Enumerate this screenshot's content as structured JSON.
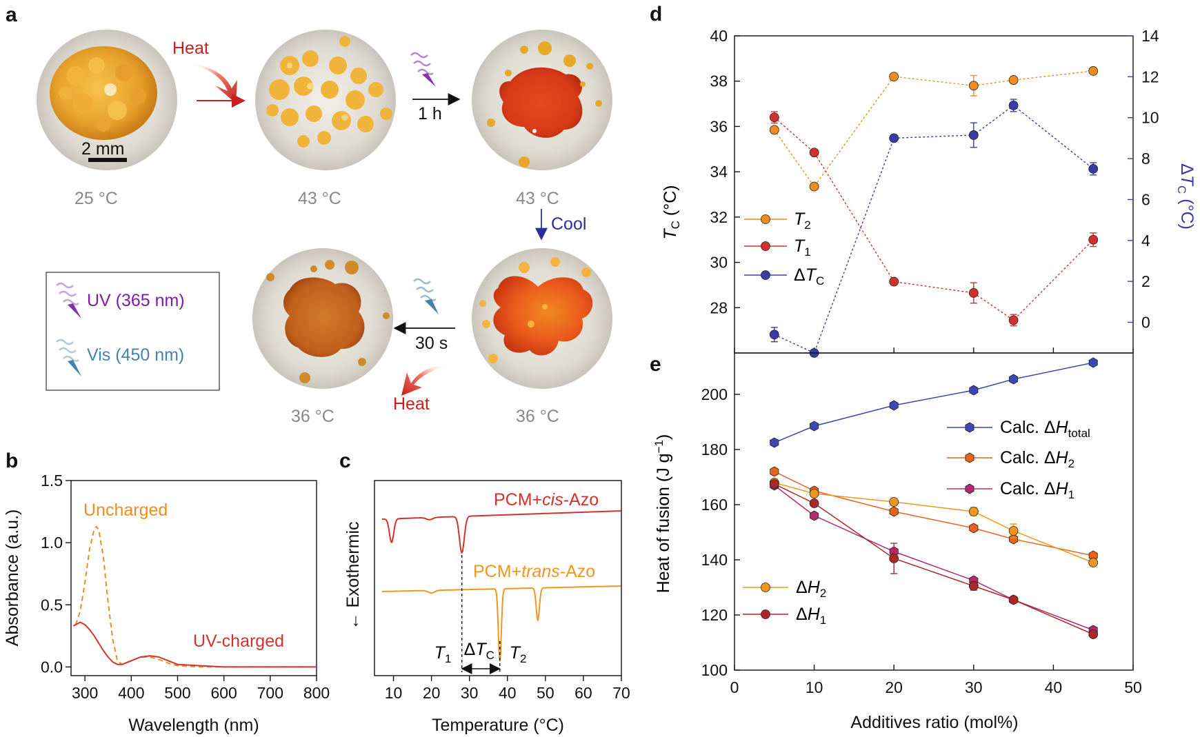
{
  "colors": {
    "t2": "#f08c1e",
    "t1": "#d2322d",
    "dtc": "#3b3ba8",
    "h_total": "#3c46b4",
    "calc_h2": "#e6641e",
    "calc_h1": "#b4286e",
    "exp_h2": "#f0961e",
    "exp_h1": "#aa2828",
    "uv": "#7d1ea0",
    "vis": "#4682aa",
    "heat": "#c81e1e",
    "cool": "#2d2d96",
    "uncharged": "#f08c1e",
    "uv_charged": "#d2322d",
    "dsc_cis": "#d2322d",
    "dsc_trans": "#f0961e"
  },
  "panel_a": {
    "label": "a",
    "scale_bar": "2 mm",
    "temps": [
      "25 °C",
      "43 °C",
      "43 °C",
      "36 °C",
      "36 °C"
    ],
    "arrows": {
      "heat_top": "Heat",
      "time_1h": "1 h",
      "cool": "Cool",
      "time_30s": "30 s",
      "heat_bottom": "Heat"
    },
    "legend": {
      "uv": "UV (365 nm)",
      "vis": "Vis (450 nm)"
    }
  },
  "chart_data": [
    {
      "panel": "b",
      "type": "line",
      "xlabel": "Wavelength (nm)",
      "ylabel": "Absorbance (a.u.)",
      "xlim": [
        270,
        800
      ],
      "ylim": [
        -0.07,
        1.5
      ],
      "xticks": [
        300,
        400,
        500,
        600,
        700,
        800
      ],
      "yticks": [
        0.0,
        0.5,
        1.0,
        1.5
      ],
      "ytick_labels": [
        "0.0",
        "0.5",
        "1.0",
        "1.5"
      ],
      "annotations": [
        "Uncharged",
        "UV-charged"
      ],
      "series": [
        {
          "name": "Uncharged",
          "style": "dashed",
          "x": [
            280,
            290,
            300,
            310,
            320,
            325,
            330,
            340,
            350,
            360,
            370,
            380,
            400,
            420,
            440,
            460,
            480,
            500,
            550,
            600,
            700,
            800
          ],
          "y": [
            0.34,
            0.45,
            0.68,
            0.95,
            1.11,
            1.13,
            1.1,
            0.88,
            0.52,
            0.22,
            0.05,
            0.02,
            0.05,
            0.08,
            0.08,
            0.06,
            0.03,
            0.01,
            0.0,
            0.0,
            0.0,
            0.0
          ]
        },
        {
          "name": "UV-charged",
          "style": "solid",
          "x": [
            275,
            290,
            300,
            310,
            320,
            330,
            340,
            350,
            360,
            370,
            380,
            400,
            420,
            440,
            460,
            480,
            500,
            550,
            600,
            700,
            800
          ],
          "y": [
            0.33,
            0.36,
            0.34,
            0.3,
            0.25,
            0.19,
            0.13,
            0.08,
            0.04,
            0.02,
            0.02,
            0.05,
            0.08,
            0.09,
            0.08,
            0.05,
            0.02,
            0.01,
            0.0,
            0.0,
            0.0
          ]
        }
      ]
    },
    {
      "panel": "c",
      "type": "line",
      "xlabel": "Temperature (°C)",
      "ylabel": "← Exothermic",
      "xlim": [
        5,
        70
      ],
      "xticks": [
        10,
        20,
        30,
        40,
        50,
        60,
        70
      ],
      "annotations": {
        "cis": "PCM+cis-Azo",
        "trans": "PCM+trans-Azo",
        "t1": "T1",
        "dtc": "ΔTC",
        "t2": "T2",
        "t1_temp": 28,
        "t2_temp": 38
      },
      "series": [
        {
          "name": "PCM+cis-Azo",
          "baseline": 0.0,
          "peaks": [
            {
              "center": 9.5,
              "depth": 0.55,
              "width": 0.8
            },
            {
              "center": 19.5,
              "depth": 0.05,
              "width": 1.2
            },
            {
              "center": 28,
              "depth": 0.85,
              "width": 0.9
            }
          ]
        },
        {
          "name": "PCM+trans-Azo",
          "baseline": 0.0,
          "peaks": [
            {
              "center": 20,
              "depth": 0.06,
              "width": 1.2
            },
            {
              "center": 38,
              "depth": 1.7,
              "width": 0.55
            },
            {
              "center": 48,
              "depth": 0.75,
              "width": 0.6
            }
          ]
        }
      ]
    },
    {
      "panel": "d",
      "type": "line",
      "xlabel": "",
      "ylabel": "TC (°C)",
      "y2label": "ΔTC (°C)",
      "xlim": [
        0,
        50
      ],
      "ylim": [
        26,
        40
      ],
      "y2lim": [
        -1.5,
        14
      ],
      "yticks": [
        28,
        30,
        32,
        34,
        36,
        38,
        40
      ],
      "y2ticks": [
        0,
        2,
        4,
        6,
        8,
        10,
        12,
        14
      ],
      "legend_position": "left-middle",
      "series": [
        {
          "name": "T2",
          "axis": "left",
          "x": [
            5,
            10,
            20,
            30,
            35,
            45
          ],
          "y": [
            35.85,
            33.35,
            38.2,
            37.8,
            38.05,
            38.45
          ],
          "err": [
            0.0,
            0.0,
            0.0,
            0.45,
            0.0,
            0.0
          ]
        },
        {
          "name": "T1",
          "axis": "left",
          "x": [
            5,
            10,
            20,
            30,
            35,
            45
          ],
          "y": [
            36.4,
            34.85,
            29.15,
            28.65,
            27.45,
            31.0
          ],
          "err": [
            0.25,
            0.0,
            0.0,
            0.45,
            0.25,
            0.3
          ]
        },
        {
          "name": "ΔTC",
          "axis": "right",
          "x": [
            5,
            10,
            20,
            30,
            35,
            45
          ],
          "y": [
            -0.6,
            -1.5,
            9.0,
            9.15,
            10.6,
            7.5
          ],
          "err": [
            0.35,
            0.0,
            0.0,
            0.6,
            0.3,
            0.3
          ]
        }
      ]
    },
    {
      "panel": "e",
      "type": "line",
      "xlabel": "Additives ratio (mol%)",
      "ylabel": "Heat of fusion (J g−1)",
      "xlim": [
        0,
        50
      ],
      "ylim": [
        100,
        215
      ],
      "xticks": [
        0,
        10,
        20,
        30,
        40,
        50
      ],
      "yticks": [
        100,
        120,
        140,
        160,
        180,
        200
      ],
      "legend_position": [
        "top-right",
        "bottom-left"
      ],
      "series": [
        {
          "name": "Calc. ΔHtotal",
          "x": [
            5,
            10,
            20,
            30,
            35,
            45
          ],
          "y": [
            182.5,
            188.5,
            196,
            201.5,
            205.5,
            211.5
          ],
          "err": [
            0,
            0,
            0,
            0,
            0,
            0
          ]
        },
        {
          "name": "Calc. ΔH2",
          "x": [
            5,
            10,
            20,
            30,
            35,
            45
          ],
          "y": [
            172,
            165,
            157.5,
            151.5,
            147.5,
            141.5
          ],
          "err": [
            0,
            0,
            0,
            0,
            0,
            0
          ]
        },
        {
          "name": "Calc. ΔH1",
          "x": [
            5,
            10,
            20,
            30,
            35,
            45
          ],
          "y": [
            167,
            156,
            143,
            132.5,
            125.5,
            114.5
          ],
          "err": [
            0,
            0,
            0,
            0,
            0,
            0
          ]
        },
        {
          "name": "ΔH2",
          "x": [
            5,
            10,
            20,
            30,
            35,
            45
          ],
          "y": [
            168,
            164,
            161,
            157.5,
            150.5,
            139
          ],
          "err": [
            0,
            0,
            0,
            1.5,
            2.5,
            0
          ]
        },
        {
          "name": "ΔH1",
          "x": [
            5,
            10,
            20,
            30,
            35,
            45
          ],
          "y": [
            167.5,
            160.5,
            140.5,
            130.5,
            125.5,
            113
          ],
          "err": [
            0,
            0,
            5.5,
            1.5,
            0,
            0
          ]
        }
      ]
    }
  ]
}
